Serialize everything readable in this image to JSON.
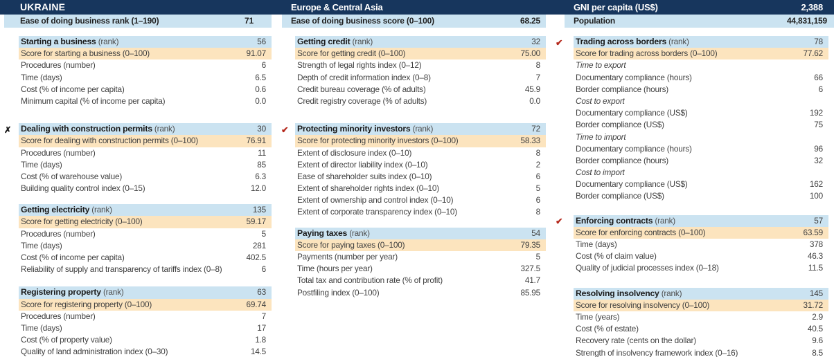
{
  "header": {
    "country": "UKRAINE",
    "region": "Europe & Central Asia",
    "gni_label": "GNI per capita (US$)",
    "gni_value": "2,388",
    "rank_label": "Ease of doing business rank (1–190)",
    "rank_value": "71",
    "score_label": "Ease of doing business score (0–100)",
    "score_value": "68.25",
    "population_label": "Population",
    "population_value": "44,831,159"
  },
  "icons": {
    "x_glyph": "✗",
    "check_glyph": "✔"
  },
  "colors": {
    "navy": "#17365D",
    "light_blue": "#CBE3F1",
    "peach": "#FCE4BE",
    "check_red": "#B5291D",
    "x_black": "#1A1A1A",
    "text": "#404040"
  },
  "columns": [
    {
      "sections": [
        {
          "marker": "",
          "title": "Starting a business",
          "title_suffix": "(rank)",
          "rank": "56",
          "score_label": "Score for starting a business (0–100)",
          "score_value": "91.07",
          "rows": [
            {
              "label": "Procedures (number)",
              "value": "6",
              "italic": false
            },
            {
              "label": "Time (days)",
              "value": "6.5",
              "italic": false
            },
            {
              "label": "Cost (% of income per capita)",
              "value": "0.6",
              "italic": false
            },
            {
              "label": "Minimum capital (% of income per capita)",
              "value": "0.0",
              "italic": false
            }
          ]
        },
        {
          "marker": "x",
          "title": "Dealing with construction permits",
          "title_suffix": "(rank)",
          "rank": "30",
          "score_label": "Score for dealing with construction permits (0–100)",
          "score_value": "76.91",
          "rows": [
            {
              "label": "Procedures (number)",
              "value": "11",
              "italic": false
            },
            {
              "label": "Time (days)",
              "value": "85",
              "italic": false
            },
            {
              "label": "Cost (% of warehouse value)",
              "value": "6.3",
              "italic": false
            },
            {
              "label": "Building quality control index (0–15)",
              "value": "12.0",
              "italic": false
            }
          ]
        },
        {
          "marker": "",
          "title": "Getting electricity",
          "title_suffix": "(rank)",
          "rank": "135",
          "score_label": "Score for getting electricity (0–100)",
          "score_value": "59.17",
          "rows": [
            {
              "label": "Procedures (number)",
              "value": "5",
              "italic": false
            },
            {
              "label": "Time (days)",
              "value": "281",
              "italic": false
            },
            {
              "label": "Cost (% of income per capita)",
              "value": "402.5",
              "italic": false
            },
            {
              "label": "Reliability of supply and transparency of tariffs index (0–8)",
              "value": "6",
              "italic": false
            }
          ]
        },
        {
          "marker": "",
          "title": "Registering property",
          "title_suffix": "(rank)",
          "rank": "63",
          "score_label": "Score for registering property (0–100)",
          "score_value": "69.74",
          "rows": [
            {
              "label": "Procedures (number)",
              "value": "7",
              "italic": false
            },
            {
              "label": "Time (days)",
              "value": "17",
              "italic": false
            },
            {
              "label": "Cost (% of property value)",
              "value": "1.8",
              "italic": false
            },
            {
              "label": "Quality of land administration index (0–30)",
              "value": "14.5",
              "italic": false
            }
          ]
        }
      ]
    },
    {
      "sections": [
        {
          "marker": "",
          "title": "Getting credit",
          "title_suffix": "(rank)",
          "rank": "32",
          "score_label": "Score for getting credit (0–100)",
          "score_value": "75.00",
          "rows": [
            {
              "label": "Strength of legal rights index (0–12)",
              "value": "8",
              "italic": false
            },
            {
              "label": "Depth of credit information index (0–8)",
              "value": "7",
              "italic": false
            },
            {
              "label": "Credit bureau coverage (% of adults)",
              "value": "45.9",
              "italic": false
            },
            {
              "label": "Credit registry coverage (% of adults)",
              "value": "0.0",
              "italic": false
            }
          ]
        },
        {
          "marker": "check",
          "title": "Protecting minority investors",
          "title_suffix": "(rank)",
          "rank": "72",
          "score_label": "Score for protecting minority investors (0–100)",
          "score_value": "58.33",
          "rows": [
            {
              "label": "Extent of disclosure index (0–10)",
              "value": "8",
              "italic": false
            },
            {
              "label": "Extent of director liability index (0–10)",
              "value": "2",
              "italic": false
            },
            {
              "label": "Ease of shareholder suits index (0–10)",
              "value": "6",
              "italic": false
            },
            {
              "label": "Extent of shareholder rights index (0–10)",
              "value": "5",
              "italic": false
            },
            {
              "label": "Extent of ownership and control index (0–10)",
              "value": "6",
              "italic": false
            },
            {
              "label": "Extent of corporate transparency index (0–10)",
              "value": "8",
              "italic": false
            }
          ]
        },
        {
          "marker": "",
          "title": "Paying taxes",
          "title_suffix": "(rank)",
          "rank": "54",
          "score_label": "Score for paying taxes (0–100)",
          "score_value": "79.35",
          "rows": [
            {
              "label": "Payments (number per year)",
              "value": "5",
              "italic": false
            },
            {
              "label": "Time (hours per year)",
              "value": "327.5",
              "italic": false
            },
            {
              "label": "Total tax and contribution rate (% of profit)",
              "value": "41.7",
              "italic": false
            },
            {
              "label": "Postfiling index (0–100)",
              "value": "85.95",
              "italic": false
            }
          ]
        }
      ]
    },
    {
      "sections": [
        {
          "marker": "check",
          "title": "Trading across borders",
          "title_suffix": "(rank)",
          "rank": "78",
          "score_label": "Score for trading across borders (0–100)",
          "score_value": "77.62",
          "rows": [
            {
              "label": "Time to export",
              "value": "",
              "italic": true
            },
            {
              "label": "Documentary compliance (hours)",
              "value": "66",
              "italic": false
            },
            {
              "label": "Border compliance (hours)",
              "value": "6",
              "italic": false
            },
            {
              "label": "Cost to export",
              "value": "",
              "italic": true
            },
            {
              "label": "Documentary compliance (US$)",
              "value": "192",
              "italic": false
            },
            {
              "label": "Border compliance (US$)",
              "value": "75",
              "italic": false
            },
            {
              "label": "Time to import",
              "value": "",
              "italic": true
            },
            {
              "label": "Documentary compliance (hours)",
              "value": "96",
              "italic": false
            },
            {
              "label": "Border compliance (hours)",
              "value": "32",
              "italic": false
            },
            {
              "label": "Cost to import",
              "value": "",
              "italic": true
            },
            {
              "label": "Documentary compliance (US$)",
              "value": "162",
              "italic": false
            },
            {
              "label": "Border compliance (US$)",
              "value": "100",
              "italic": false
            }
          ]
        },
        {
          "marker": "check",
          "title": "Enforcing contracts",
          "title_suffix": "(rank)",
          "rank": "57",
          "score_label": "Score for enforcing contracts (0–100)",
          "score_value": "63.59",
          "rows": [
            {
              "label": "Time (days)",
              "value": "378",
              "italic": false
            },
            {
              "label": "Cost (% of claim value)",
              "value": "46.3",
              "italic": false
            },
            {
              "label": "Quality of judicial processes index (0–18)",
              "value": "11.5",
              "italic": false
            }
          ]
        },
        {
          "marker": "",
          "title": "Resolving insolvency",
          "title_suffix": "(rank)",
          "rank": "145",
          "score_label": "Score for resolving insolvency (0–100)",
          "score_value": "31.72",
          "rows": [
            {
              "label": "Time (years)",
              "value": "2.9",
              "italic": false
            },
            {
              "label": "Cost (% of estate)",
              "value": "40.5",
              "italic": false
            },
            {
              "label": "Recovery rate (cents on the dollar)",
              "value": "9.6",
              "italic": false
            },
            {
              "label": "Strength of insolvency framework index (0–16)",
              "value": "8.5",
              "italic": false
            }
          ]
        }
      ]
    }
  ]
}
